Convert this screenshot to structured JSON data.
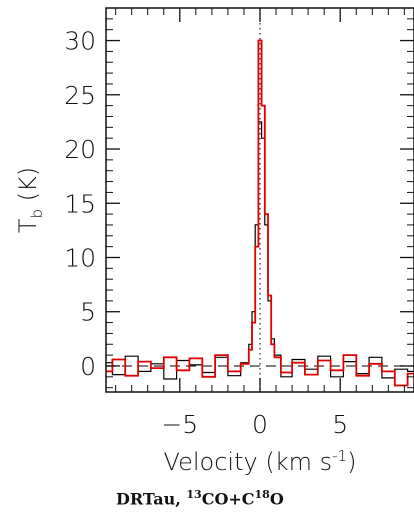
{
  "chart_data": {
    "type": "line",
    "step": true,
    "xlim": [
      -9.6,
      9.6
    ],
    "ylim": [
      -2.4,
      33
    ],
    "x_ticks": [
      {
        "v": -5,
        "label": "−5"
      },
      {
        "v": 0,
        "label": "0"
      },
      {
        "v": 5,
        "label": "5"
      }
    ],
    "y_ticks": [
      {
        "v": 0,
        "label": "0"
      },
      {
        "v": 5,
        "label": "5"
      },
      {
        "v": 10,
        "label": "10"
      },
      {
        "v": 15,
        "label": "15"
      },
      {
        "v": 20,
        "label": "20"
      },
      {
        "v": 25,
        "label": "25"
      },
      {
        "v": 30,
        "label": "30"
      }
    ],
    "xlabel": {
      "text": "Velocity (km s",
      "sup": "-1",
      "close": ")"
    },
    "ylabel": {
      "main": "T",
      "sub": "b",
      "unit": " (K)"
    },
    "reference_line_x": 0,
    "series": [
      {
        "color": "#000000",
        "x": [
          -9.6,
          -8.8,
          -8.0,
          -7.2,
          -6.4,
          -5.6,
          -4.8,
          -4.0,
          -3.2,
          -2.4,
          -1.6,
          -0.8,
          -0.6,
          -0.4,
          -0.2,
          0.0,
          0.2,
          0.4,
          0.6,
          0.8,
          1.0,
          1.6,
          2.4,
          3.2,
          4.0,
          4.8,
          5.6,
          6.4,
          7.2,
          8.0,
          8.8,
          9.6
        ],
        "values": [
          0.3,
          -0.8,
          0.9,
          -0.5,
          0.2,
          -1.2,
          0.5,
          0.1,
          -0.6,
          0.8,
          -0.9,
          0.3,
          2.0,
          5.0,
          13.0,
          22.5,
          21.0,
          13.0,
          6.0,
          2.5,
          1.0,
          -1.0,
          0.6,
          -0.3,
          0.9,
          -1.0,
          0.4,
          -0.7,
          0.8,
          -1.1,
          -0.3,
          -0.5
        ]
      },
      {
        "color": "#e00000",
        "x": [
          -9.6,
          -8.8,
          -8.0,
          -7.2,
          -6.4,
          -5.6,
          -4.8,
          -4.0,
          -3.2,
          -2.4,
          -1.6,
          -0.8,
          -0.6,
          -0.4,
          -0.2,
          0.0,
          0.2,
          0.4,
          0.6,
          0.8,
          1.0,
          1.6,
          2.4,
          3.2,
          4.0,
          4.8,
          5.6,
          6.4,
          7.2,
          8.0,
          8.8,
          9.6
        ],
        "values": [
          -0.5,
          0.6,
          -0.9,
          0.4,
          -0.2,
          0.8,
          -0.4,
          0.7,
          -1.0,
          1.0,
          -0.5,
          0.2,
          1.5,
          4.0,
          11.0,
          30.0,
          24.0,
          14.0,
          6.5,
          2.0,
          0.8,
          -0.6,
          0.3,
          -0.8,
          0.5,
          -0.4,
          1.0,
          -0.9,
          0.2,
          -0.5,
          -1.8,
          -0.7
        ]
      }
    ]
  },
  "caption": {
    "prefix": "DRTau, ",
    "sup1": "13",
    "mid": "CO+C",
    "sup2": "18",
    "suffix": "O"
  }
}
